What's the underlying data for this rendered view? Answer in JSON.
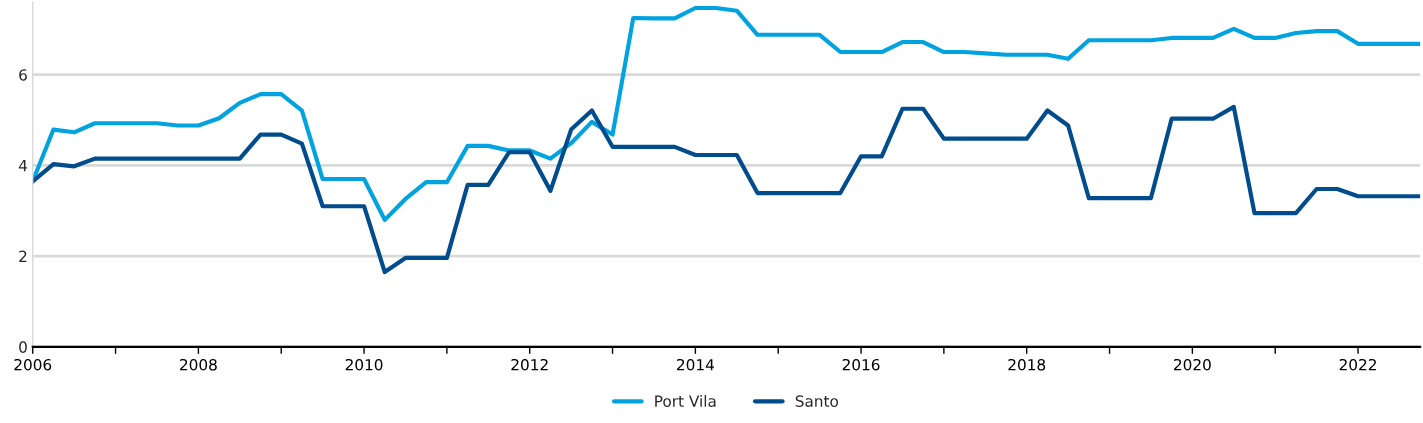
{
  "chart_data": {
    "type": "line",
    "x": [
      2006,
      2006.25,
      2006.5,
      2006.75,
      2007,
      2007.25,
      2007.5,
      2007.75,
      2008,
      2008.25,
      2008.5,
      2008.75,
      2009,
      2009.25,
      2009.5,
      2009.75,
      2010,
      2010.25,
      2010.5,
      2010.75,
      2011,
      2011.25,
      2011.5,
      2011.75,
      2012,
      2012.25,
      2012.5,
      2012.75,
      2013,
      2013.25,
      2013.5,
      2013.75,
      2014,
      2014.25,
      2014.5,
      2014.75,
      2015,
      2015.25,
      2015.5,
      2015.75,
      2016,
      2016.25,
      2016.5,
      2016.75,
      2017,
      2017.25,
      2017.5,
      2017.75,
      2018,
      2018.25,
      2018.5,
      2018.75,
      2019,
      2019.25,
      2019.5,
      2019.75,
      2020,
      2020.25,
      2020.5,
      2020.75,
      2021,
      2021.25,
      2021.5,
      2021.75,
      2022,
      2022.25,
      2022.5,
      2022.75
    ],
    "series": [
      {
        "name": "Port Vila",
        "color": "#00a3e0",
        "values": [
          3.65,
          4.79,
          4.73,
          4.93,
          4.93,
          4.93,
          4.93,
          4.88,
          4.88,
          5.04,
          5.38,
          5.57,
          5.57,
          5.21,
          3.7,
          3.7,
          3.7,
          2.8,
          3.26,
          3.63,
          3.63,
          4.43,
          4.43,
          4.33,
          4.33,
          4.15,
          4.49,
          4.96,
          4.68,
          7.25,
          7.24,
          7.24,
          7.47,
          7.47,
          7.41,
          6.88,
          6.88,
          6.88,
          6.88,
          6.5,
          6.5,
          6.5,
          6.72,
          6.72,
          6.5,
          6.5,
          6.47,
          6.44,
          6.44,
          6.44,
          6.35,
          6.76,
          6.76,
          6.76,
          6.76,
          6.81,
          6.81,
          6.81,
          7.01,
          6.81,
          6.81,
          6.92,
          6.96,
          6.96,
          6.68,
          6.68,
          6.68,
          6.68
        ]
      },
      {
        "name": "Santo",
        "color": "#004c8c",
        "values": [
          3.65,
          4.03,
          3.98,
          4.15,
          4.15,
          4.15,
          4.15,
          4.15,
          4.15,
          4.15,
          4.15,
          4.68,
          4.68,
          4.48,
          3.1,
          3.1,
          3.1,
          1.65,
          1.96,
          1.96,
          1.96,
          3.57,
          3.57,
          4.29,
          4.29,
          3.44,
          4.79,
          5.21,
          4.41,
          4.41,
          4.41,
          4.41,
          4.23,
          4.23,
          4.23,
          3.39,
          3.39,
          3.39,
          3.39,
          3.39,
          4.2,
          4.2,
          5.25,
          5.25,
          4.59,
          4.59,
          4.59,
          4.59,
          4.59,
          5.21,
          4.88,
          3.28,
          3.28,
          3.28,
          3.28,
          5.03,
          5.03,
          5.03,
          5.29,
          2.95,
          2.95,
          2.95,
          3.48,
          3.48,
          3.32,
          3.32,
          3.32,
          3.32
        ]
      }
    ],
    "xlim": [
      2006,
      2022.75
    ],
    "xticks": [
      2006,
      {
        "value": 2007,
        "label": null
      },
      2008,
      {
        "value": 2009,
        "label": null
      },
      2010,
      {
        "value": 2011,
        "label": null
      },
      2012,
      {
        "value": 2013,
        "label": null
      },
      2014,
      {
        "value": 2015,
        "label": null
      },
      2016,
      {
        "value": 2017,
        "label": null
      },
      2018,
      {
        "value": 2019,
        "label": null
      },
      2020,
      {
        "value": 2021,
        "label": null
      },
      2022
    ],
    "ylim": [
      0,
      7.6
    ],
    "yticks": [
      0,
      2,
      4,
      6
    ],
    "grid": "y",
    "legend": "bottom",
    "line_style": "solid",
    "marker": "none"
  }
}
